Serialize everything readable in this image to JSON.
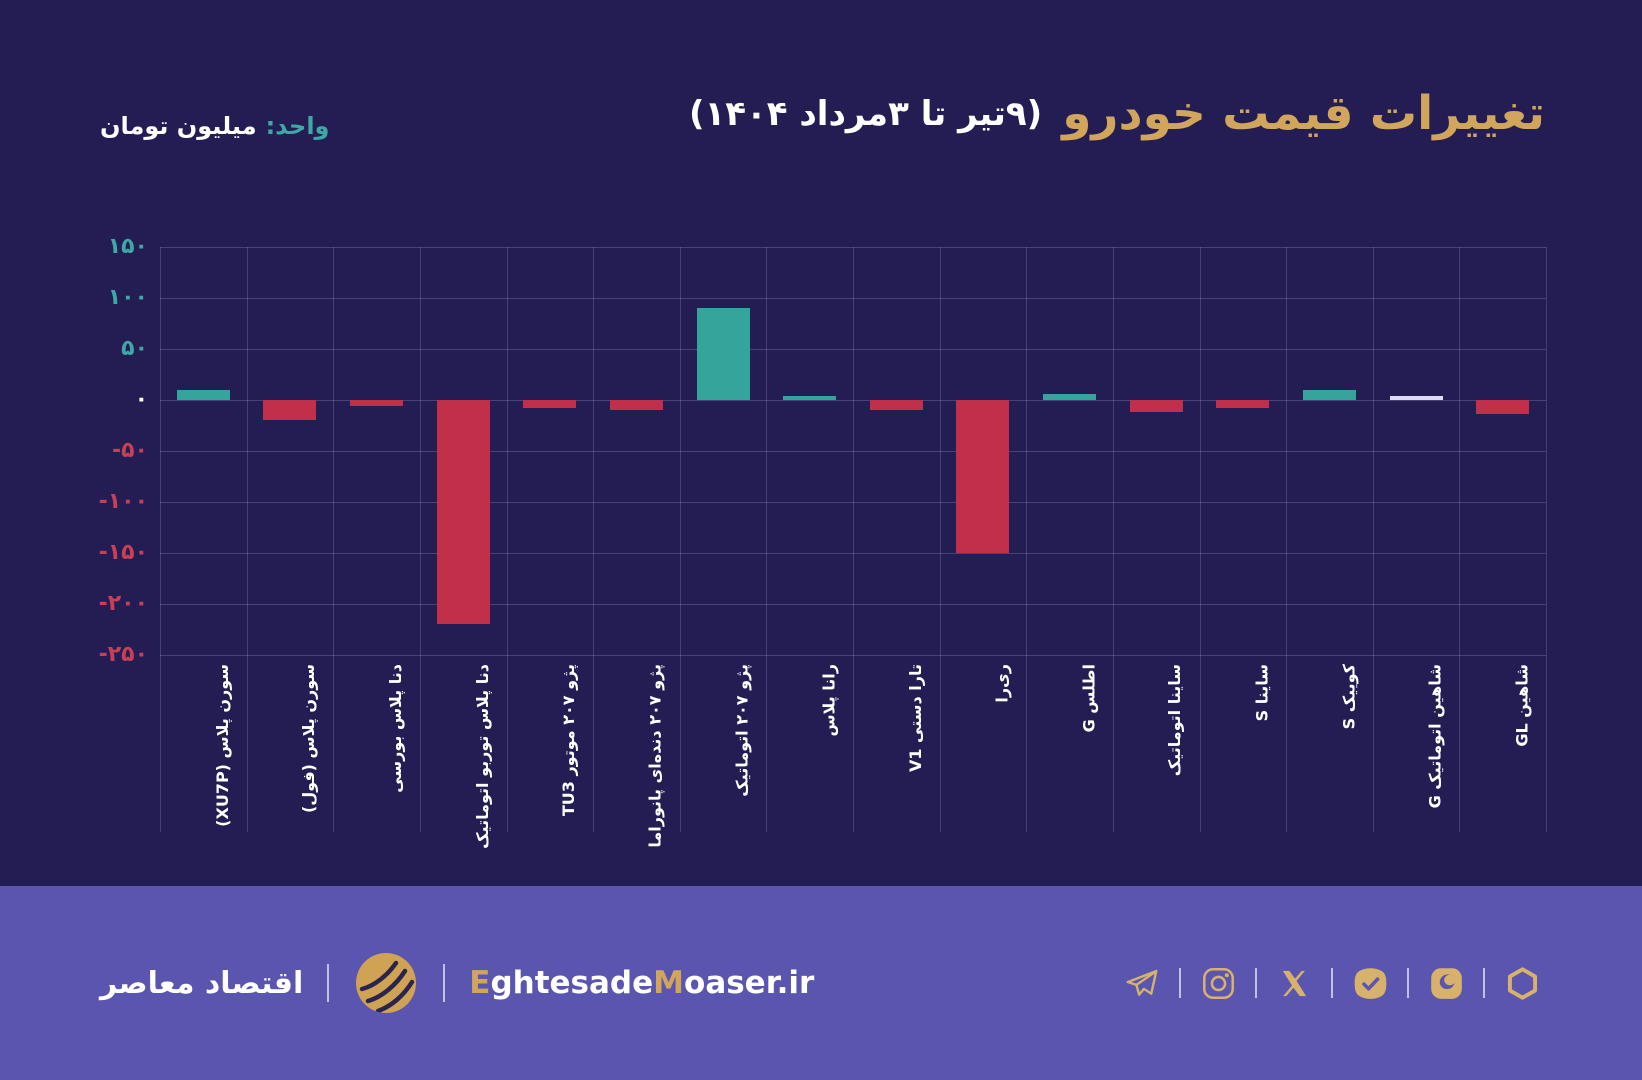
{
  "title": {
    "main": "تغییرات قیمت خودرو",
    "date": "(۹تیر تا ۳مرداد ۱۴۰۴)"
  },
  "unit": {
    "label": "واحد:",
    "value": "میلیون تومان"
  },
  "chart_data": {
    "type": "bar",
    "title": "تغییرات قیمت خودرو (۹تیر تا ۳مرداد ۱۴۰۴)",
    "ylabel": "میلیون تومان",
    "ylim": [
      -250,
      150
    ],
    "grid": true,
    "yticks": [
      {
        "value": 150,
        "label": "۱۵۰"
      },
      {
        "value": 100,
        "label": "۱۰۰"
      },
      {
        "value": 50,
        "label": "۵۰"
      },
      {
        "value": 0,
        "label": "۰"
      },
      {
        "value": -50,
        "label": "-۵۰"
      },
      {
        "value": -100,
        "label": "-۱۰۰"
      },
      {
        "value": -150,
        "label": "-۱۵۰"
      },
      {
        "value": -200,
        "label": "-۲۰۰"
      },
      {
        "value": -250,
        "label": "-۲۵۰"
      }
    ],
    "categories": [
      "سورن پلاس (XU7P)",
      "سورن پلاس (فول)",
      "دنا پلاس بورسی",
      "دنا پلاس توربو اتوماتیک",
      "پژو ۲۰۷ موتور TU3",
      "پژو ۲۰۷ دنده‌ای پانوراما",
      "پژو ۲۰۷ اتوماتیک",
      "رانا پلاس",
      "تارا دستی V1",
      "ری‌را",
      "اطلس G",
      "ساینا اتوماتیک",
      "ساینا S",
      "کوییک S",
      "شاهین اتوماتیک G",
      "شاهین GL"
    ],
    "values": [
      10,
      -20,
      -6,
      -220,
      -8,
      -10,
      90,
      4,
      -10,
      -150,
      6,
      -12,
      -8,
      10,
      0,
      -14
    ]
  },
  "footer": {
    "brand": "اقتصاد معاصر",
    "site_parts": [
      {
        "text": "E",
        "gold": true
      },
      {
        "text": "ghtesade",
        "gold": false
      },
      {
        "text": "M",
        "gold": true
      },
      {
        "text": "oaser",
        "gold": false
      },
      {
        "text": ".ir",
        "gold": false
      }
    ],
    "social": [
      "telegram",
      "instagram",
      "x",
      "bale",
      "eitaa",
      "rubika"
    ]
  },
  "colors": {
    "background": "#231d54",
    "footer_band": "#5a55ae",
    "gold": "#d2a55c",
    "icon_gold": "#d8b26d",
    "teal": "#35a49a",
    "red": "#c22f4a",
    "zero_bar": "#dcdcf2",
    "tick_teal": "#3fa8a5",
    "tick_red": "#c94056"
  }
}
